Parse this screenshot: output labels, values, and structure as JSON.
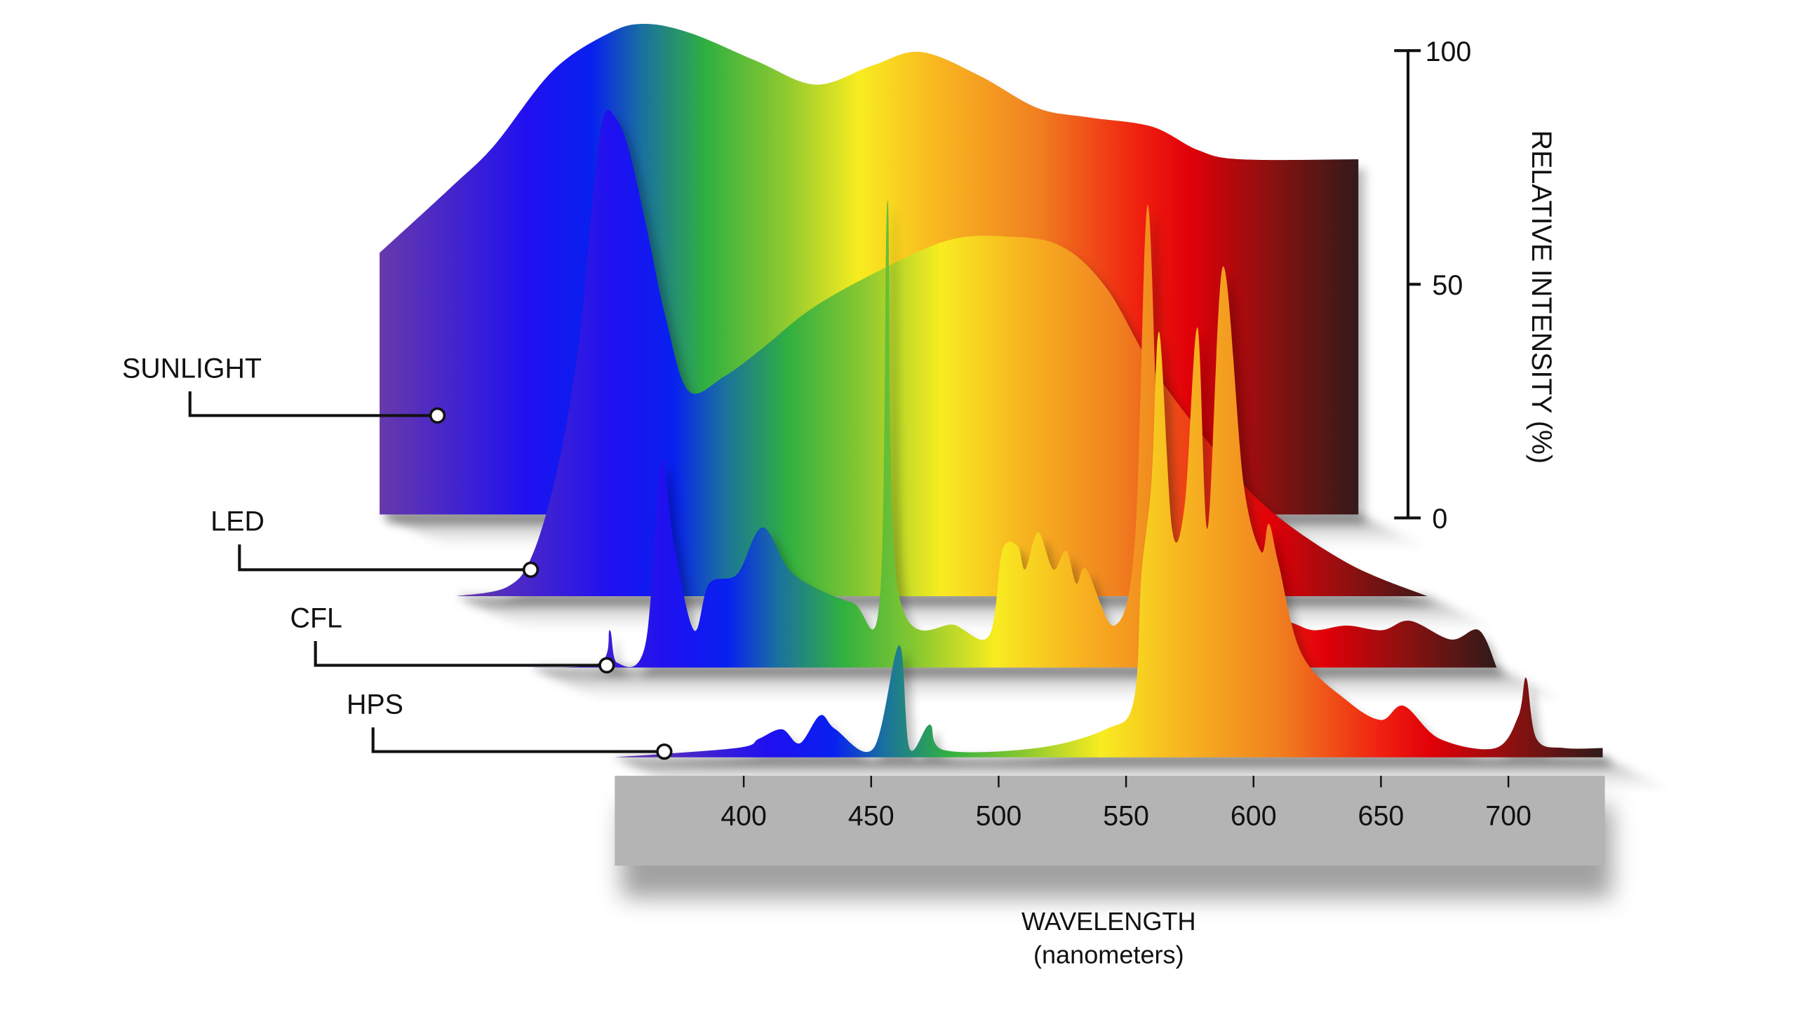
{
  "chart_data": {
    "type": "area",
    "title": "",
    "xlabel": "WAVELENGTH",
    "xlabel_unit": "(nanometers)",
    "ylabel": "RELATIVE INTENSITY (%)",
    "xlim": [
      350,
      737
    ],
    "ylim": [
      0,
      100
    ],
    "x_ticks": [
      "400",
      "450",
      "500",
      "550",
      "600",
      "650",
      "700"
    ],
    "x_tick_values": [
      400,
      450,
      500,
      550,
      600,
      650,
      700
    ],
    "y_ticks": [
      "0",
      "50",
      "100"
    ],
    "y_tick_values": [
      0,
      50,
      100
    ],
    "grid": false,
    "legend": "labels at left",
    "spectrum_colors": [
      [
        350,
        "#6a3aa8"
      ],
      [
        410,
        "#2010f0"
      ],
      [
        435,
        "#0820f0"
      ],
      [
        455,
        "#1a70a0"
      ],
      [
        480,
        "#30b040"
      ],
      [
        510,
        "#8ac830"
      ],
      [
        540,
        "#f8ec20"
      ],
      [
        570,
        "#f8b820"
      ],
      [
        610,
        "#f08020"
      ],
      [
        650,
        "#f02010"
      ],
      [
        670,
        "#e00008"
      ],
      [
        700,
        "#901010"
      ],
      [
        737,
        "#301a1a"
      ]
    ],
    "series": [
      {
        "name": "SUNLIGHT",
        "points": [
          [
            352,
            56
          ],
          [
            380,
            70
          ],
          [
            397,
            79
          ],
          [
            420,
            95
          ],
          [
            442,
            103
          ],
          [
            456,
            105
          ],
          [
            474,
            103
          ],
          [
            500,
            97
          ],
          [
            523,
            92
          ],
          [
            545,
            96
          ],
          [
            564,
            99
          ],
          [
            587,
            94
          ],
          [
            610,
            87
          ],
          [
            630,
            85
          ],
          [
            655,
            83
          ],
          [
            673,
            78
          ],
          [
            690,
            76
          ],
          [
            736,
            76
          ]
        ]
      },
      {
        "name": "LED",
        "points": [
          [
            350,
            0
          ],
          [
            370,
            2
          ],
          [
            380,
            9
          ],
          [
            390,
            28
          ],
          [
            398,
            54
          ],
          [
            404,
            88
          ],
          [
            408,
            103
          ],
          [
            413,
            102
          ],
          [
            418,
            95
          ],
          [
            425,
            78
          ],
          [
            432,
            60
          ],
          [
            441,
            44
          ],
          [
            455,
            47
          ],
          [
            470,
            53
          ],
          [
            488,
            61
          ],
          [
            510,
            68
          ],
          [
            542,
            76
          ],
          [
            565,
            77
          ],
          [
            587,
            75
          ],
          [
            605,
            66
          ],
          [
            623,
            49
          ],
          [
            645,
            33
          ],
          [
            668,
            19
          ],
          [
            700,
            7
          ],
          [
            731,
            0
          ]
        ]
      },
      {
        "name": "CFL",
        "points": [
          [
            358,
            0
          ],
          [
            385,
            1
          ],
          [
            389,
            8
          ],
          [
            392,
            1
          ],
          [
            403,
            5
          ],
          [
            409,
            44
          ],
          [
            414,
            27
          ],
          [
            422,
            8
          ],
          [
            428,
            18
          ],
          [
            439,
            20
          ],
          [
            449,
            30
          ],
          [
            461,
            20
          ],
          [
            484,
            14
          ],
          [
            495,
            15
          ],
          [
            498,
            100
          ],
          [
            502,
            17
          ],
          [
            525,
            9
          ],
          [
            538,
            7
          ],
          [
            543,
            25
          ],
          [
            549,
            26
          ],
          [
            552,
            21
          ],
          [
            557,
            29
          ],
          [
            563,
            21
          ],
          [
            568,
            25
          ],
          [
            572,
            18
          ],
          [
            576,
            21
          ],
          [
            587,
            9
          ],
          [
            595,
            27
          ],
          [
            600,
            99
          ],
          [
            605,
            35
          ],
          [
            612,
            14
          ],
          [
            630,
            10
          ],
          [
            653,
            10
          ],
          [
            665,
            8
          ],
          [
            678,
            9
          ],
          [
            692,
            8
          ],
          [
            703,
            10
          ],
          [
            719,
            6
          ],
          [
            730,
            8
          ],
          [
            737,
            0
          ]
        ]
      },
      {
        "name": "HPS",
        "points": [
          [
            349,
            0
          ],
          [
            397,
            2
          ],
          [
            406,
            4
          ],
          [
            415,
            6
          ],
          [
            422,
            3
          ],
          [
            430,
            9
          ],
          [
            436,
            6
          ],
          [
            451,
            2
          ],
          [
            461,
            24
          ],
          [
            465,
            2
          ],
          [
            473,
            7
          ],
          [
            479,
            1.5
          ],
          [
            515,
            2
          ],
          [
            542,
            6
          ],
          [
            553,
            12
          ],
          [
            556,
            39
          ],
          [
            560,
            59
          ],
          [
            563,
            91
          ],
          [
            568,
            49
          ],
          [
            573,
            54
          ],
          [
            578,
            92
          ],
          [
            582,
            49
          ],
          [
            588,
            105
          ],
          [
            596,
            59
          ],
          [
            603,
            44
          ],
          [
            606,
            50
          ],
          [
            610,
            41
          ],
          [
            619,
            22
          ],
          [
            637,
            12
          ],
          [
            650,
            8
          ],
          [
            659,
            11
          ],
          [
            673,
            4
          ],
          [
            695,
            2
          ],
          [
            704,
            9
          ],
          [
            707,
            17
          ],
          [
            711,
            4
          ],
          [
            722,
            2
          ],
          [
            737,
            2
          ]
        ]
      }
    ]
  }
}
